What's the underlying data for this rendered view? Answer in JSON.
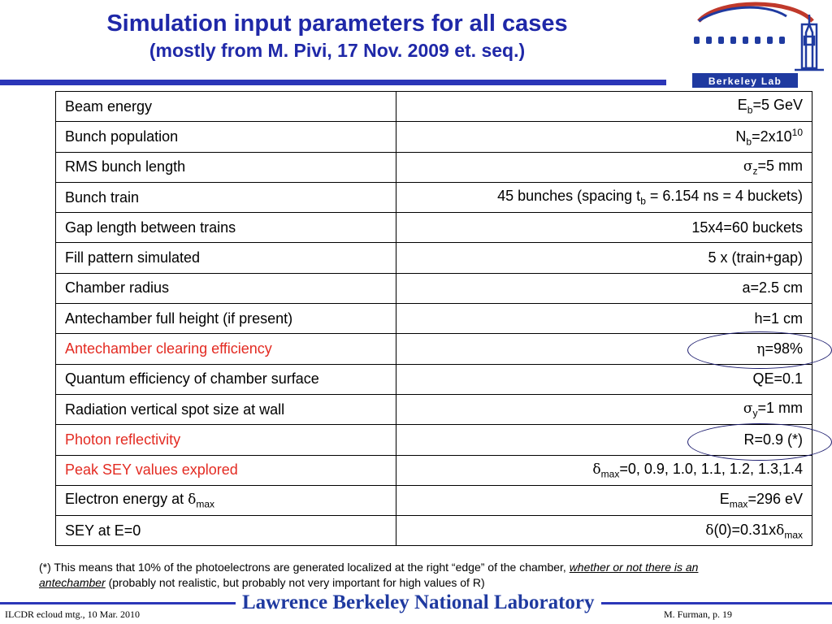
{
  "slide": {
    "title": "Simulation input parameters for all cases",
    "subtitle": "(mostly from M. Pivi, 17 Nov. 2009 et. seq.)"
  },
  "logo": {
    "text": "Berkeley Lab",
    "icon": "berkeley-lab-logo"
  },
  "colors": {
    "title": "#1f28a8",
    "highlight_label": "#e32b22",
    "rule": "#2b36b8"
  },
  "rows": [
    {
      "label": "Beam energy",
      "value": [
        {
          "t": "E"
        },
        {
          "sub": "b"
        },
        {
          "t": "=5 GeV"
        }
      ]
    },
    {
      "label": "Bunch population",
      "value": [
        {
          "t": "N"
        },
        {
          "sub": "b"
        },
        {
          "t": "=2x10"
        },
        {
          "sup": "10"
        }
      ]
    },
    {
      "label": "RMS bunch length",
      "value": [
        {
          "g": "σ"
        },
        {
          "sub": "z"
        },
        {
          "t": "=5 mm"
        }
      ]
    },
    {
      "label": "Bunch train",
      "value": [
        {
          "t": "45 bunches (spacing t"
        },
        {
          "sub": "b"
        },
        {
          "t": " = 6.154 ns = 4 buckets)"
        }
      ]
    },
    {
      "label": "Gap length between trains",
      "value": [
        {
          "t": "15x4=60 buckets"
        }
      ]
    },
    {
      "label": "Fill pattern simulated",
      "value": [
        {
          "t": "5 x (train+gap)"
        }
      ]
    },
    {
      "label": "Chamber radius",
      "value": [
        {
          "t": "a=2.5 cm"
        }
      ]
    },
    {
      "label": "Antechamber full height (if present)",
      "value": [
        {
          "t": "h=1 cm"
        }
      ]
    },
    {
      "label": "Antechamber clearing efficiency",
      "highlight": true,
      "value": [
        {
          "g": "η"
        },
        {
          "t": "=98%"
        }
      ]
    },
    {
      "label": "Quantum efficiency of chamber surface",
      "value": [
        {
          "t": "QE=0.1"
        }
      ]
    },
    {
      "label": "Radiation vertical spot size at wall",
      "value": [
        {
          "g": "σ"
        },
        {
          "sub": "y"
        },
        {
          "t": "=1 mm"
        }
      ]
    },
    {
      "label": "Photon reflectivity",
      "highlight": true,
      "value": [
        {
          "t": "R=0.9  (*)"
        }
      ]
    },
    {
      "label": "Peak SEY values explored",
      "highlight": true,
      "value": [
        {
          "g": "δ"
        },
        {
          "sub": "max"
        },
        {
          "t": "=0, 0.9, 1.0, 1.1, 1.2, 1.3,1.4"
        }
      ]
    },
    {
      "label": [
        {
          "t": "Electron energy at "
        },
        {
          "g": "δ"
        },
        {
          "sub": "max"
        }
      ],
      "value": [
        {
          "t": "E"
        },
        {
          "sub": "max"
        },
        {
          "t": "=296 eV"
        }
      ]
    },
    {
      "label": "SEY at E=0",
      "value": [
        {
          "g": "δ"
        },
        {
          "t": "(0)=0.31x"
        },
        {
          "g": "δ"
        },
        {
          "sub": "max"
        }
      ]
    }
  ],
  "footnote": {
    "part1": "(*) This means that 10% of the photoelectrons are generated localized at the right “edge” of the chamber, ",
    "emphasis": "whether or not there is an antechamber",
    "part2": " (probably not realistic, but probably not very important for high values of R)"
  },
  "footer": {
    "left": "ILCDR ecloud mtg., 10 Mar. 2010",
    "center": "Lawrence Berkeley National Laboratory",
    "right": "M. Furman,   p. 19"
  }
}
